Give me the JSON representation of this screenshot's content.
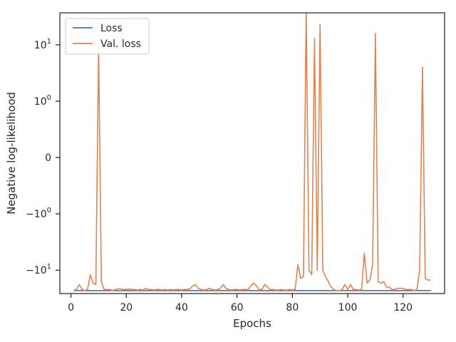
{
  "chart_data": {
    "type": "line",
    "xlabel": "Epochs",
    "ylabel": "Negative log-likelihood",
    "y_scale": "symlog",
    "xlim": [
      -4,
      135
    ],
    "ylim": [
      -26,
      37
    ],
    "x_ticks": [
      0,
      20,
      40,
      60,
      80,
      100,
      120
    ],
    "y_ticks": [
      {
        "value": 10,
        "base": "10",
        "exp": "1",
        "sign": ""
      },
      {
        "value": 1,
        "base": "10",
        "exp": "0",
        "sign": ""
      },
      {
        "value": 0,
        "text": "0"
      },
      {
        "value": -1,
        "base": "10",
        "exp": "0",
        "sign": "−"
      },
      {
        "value": -10,
        "base": "10",
        "exp": "1",
        "sign": "−"
      }
    ],
    "grid": false,
    "legend_position": "top-left",
    "series": [
      {
        "name": "Loss",
        "color": "#4c72b0",
        "x": [
          1,
          130
        ],
        "y": [
          -23,
          -23
        ]
      },
      {
        "name": "Val. loss",
        "color": "#dd8452",
        "x": [
          1,
          2,
          3,
          4,
          5,
          6,
          7,
          8,
          9,
          10,
          11,
          12,
          13,
          14,
          15,
          16,
          17,
          18,
          19,
          20,
          21,
          22,
          23,
          24,
          25,
          26,
          27,
          28,
          29,
          30,
          31,
          32,
          33,
          34,
          35,
          36,
          37,
          38,
          39,
          40,
          41,
          42,
          43,
          44,
          45,
          46,
          47,
          48,
          49,
          50,
          51,
          52,
          53,
          54,
          55,
          56,
          57,
          58,
          59,
          60,
          61,
          62,
          63,
          64,
          65,
          66,
          67,
          68,
          69,
          70,
          71,
          72,
          73,
          74,
          75,
          76,
          77,
          78,
          79,
          80,
          81,
          82,
          83,
          84,
          85,
          86,
          87,
          88,
          89,
          90,
          91,
          92,
          93,
          94,
          95,
          96,
          97,
          98,
          99,
          100,
          101,
          102,
          103,
          104,
          105,
          106,
          107,
          108,
          109,
          110,
          111,
          112,
          113,
          114,
          115,
          116,
          117,
          118,
          119,
          120,
          121,
          122,
          123,
          124,
          125,
          126,
          127,
          128,
          129,
          130
        ],
        "y": [
          -23,
          -22,
          -18,
          -22,
          -23,
          -22,
          -12,
          -17,
          -18,
          9,
          -16,
          -22,
          -22,
          -22,
          -23,
          -22,
          -21.5,
          -21.5,
          -22,
          -22,
          -21.5,
          -22,
          -22,
          -22.5,
          -22,
          -22.5,
          -21,
          -22,
          -22,
          -22.5,
          -22,
          -22,
          -22.5,
          -22,
          -22.5,
          -22,
          -22.5,
          -22,
          -22,
          -22.5,
          -22,
          -22,
          -21.5,
          -19,
          -18,
          -21,
          -22,
          -22.5,
          -22,
          -21,
          -22,
          -22.5,
          -22,
          -21,
          -18,
          -21,
          -22,
          -22.5,
          -22,
          -22,
          -22.5,
          -22,
          -22,
          -22,
          -19,
          -17,
          -19,
          -22,
          -22,
          -18,
          -20,
          -22,
          -22,
          -22.5,
          -22.5,
          -22,
          -22.5,
          -22.5,
          -22,
          -22.5,
          -22,
          -8,
          -14,
          -13,
          40,
          -10,
          -12,
          13,
          -10,
          23,
          -10,
          -13,
          -16,
          -20,
          -22,
          -23,
          -23,
          -22,
          -18,
          -22,
          -18,
          -22,
          -22,
          -22.5,
          -22,
          -5,
          -17,
          -15,
          -8,
          16,
          -16,
          -17,
          -16,
          -20,
          -20,
          -22,
          -22,
          -21,
          -21,
          -21,
          -22,
          -22,
          -22,
          -23,
          -22,
          -10,
          4,
          -14,
          -15,
          -15
        ]
      }
    ]
  }
}
